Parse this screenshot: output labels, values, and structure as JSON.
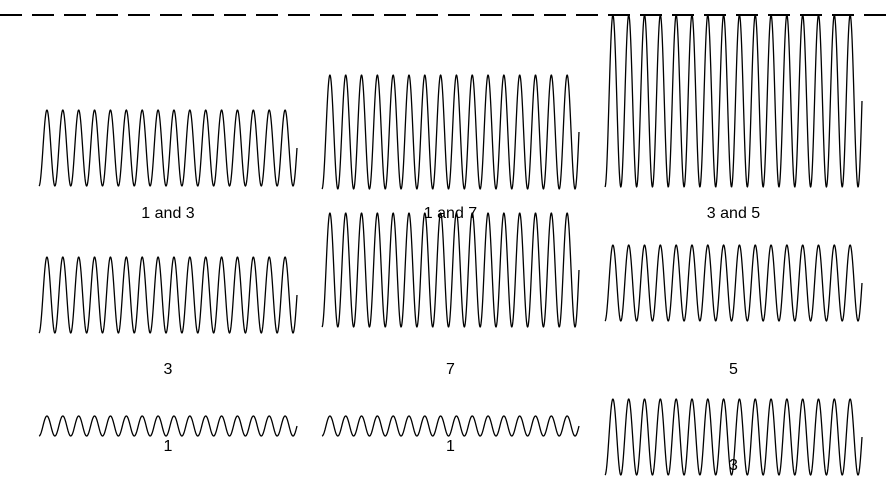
{
  "panels": [
    {
      "label": "1 and 3",
      "amplitude": "medium"
    },
    {
      "label": "1 and 7",
      "amplitude": "large"
    },
    {
      "label": "3 and 5",
      "amplitude": "largest"
    },
    {
      "label": "3",
      "amplitude": "medium"
    },
    {
      "label": "7",
      "amplitude": "large"
    },
    {
      "label": "5",
      "amplitude": "medium"
    },
    {
      "label": "1",
      "amplitude": "small"
    },
    {
      "label": "1",
      "amplitude": "small"
    },
    {
      "label": "3",
      "amplitude": "medium"
    }
  ],
  "colors": {
    "stroke": "#000000",
    "background": "#ffffff"
  }
}
